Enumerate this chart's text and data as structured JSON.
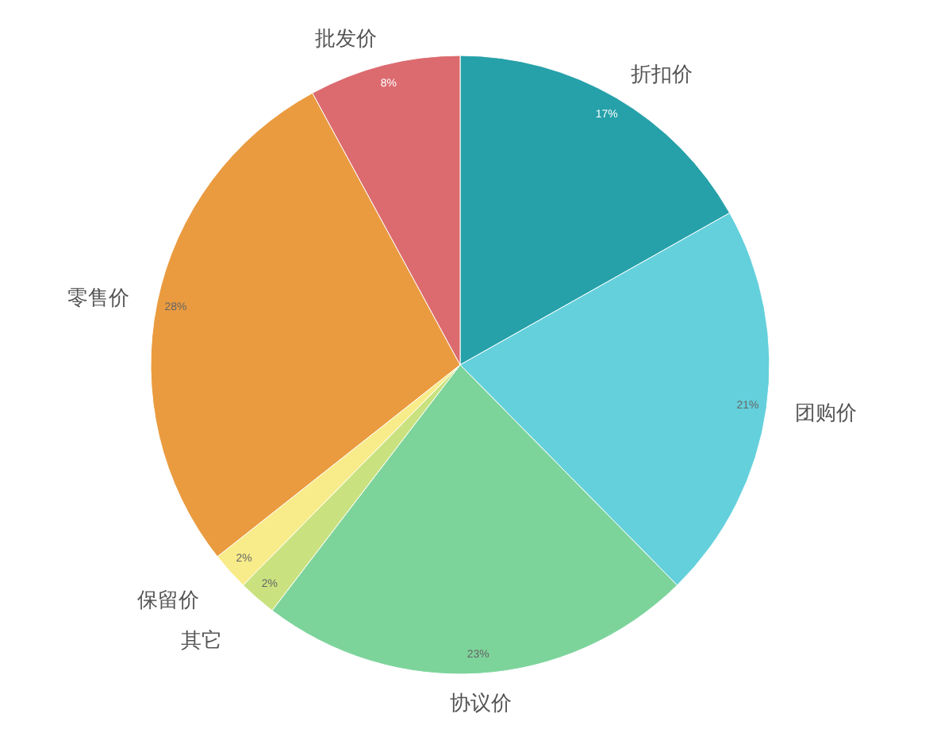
{
  "chart_data": {
    "type": "pie",
    "categories": [
      "折扣价",
      "团购价",
      "协议价",
      "其它",
      "保留价",
      "零售价",
      "批发价"
    ],
    "values": [
      17,
      21,
      23,
      2,
      2,
      28,
      8
    ],
    "colors": [
      "#26a1a9",
      "#64d0dc",
      "#7dd49b",
      "#c9e27f",
      "#f8ec8a",
      "#ea9b3f",
      "#dc6b6f"
    ],
    "value_labels": [
      "17%",
      "21%",
      "23%",
      "2%",
      "2%",
      "28%",
      "8%"
    ]
  }
}
